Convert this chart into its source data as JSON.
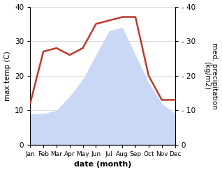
{
  "months": [
    "Jan",
    "Feb",
    "Mar",
    "Apr",
    "May",
    "Jun",
    "Jul",
    "Aug",
    "Sep",
    "Oct",
    "Nov",
    "Dec"
  ],
  "month_positions": [
    1,
    2,
    3,
    4,
    5,
    6,
    7,
    8,
    9,
    10,
    11,
    12
  ],
  "max_temp": [
    9,
    9,
    10,
    14,
    19,
    26,
    33,
    34,
    26,
    18,
    12,
    9
  ],
  "precipitation": [
    12,
    27,
    28,
    26,
    28,
    35,
    36,
    37,
    37,
    20,
    13,
    13
  ],
  "temp_color": "#c8d8f5",
  "precip_color": "#c0392b",
  "ylim_left": [
    0,
    40
  ],
  "ylim_right": [
    0,
    40
  ],
  "yticks_left": [
    0,
    10,
    20,
    30,
    40
  ],
  "yticks_right": [
    0,
    10,
    20,
    30,
    40
  ],
  "xlabel": "date (month)",
  "ylabel_left": "max temp (C)",
  "ylabel_right": "med. precipitation\n(kg/m2)",
  "background_color": "#ffffff"
}
